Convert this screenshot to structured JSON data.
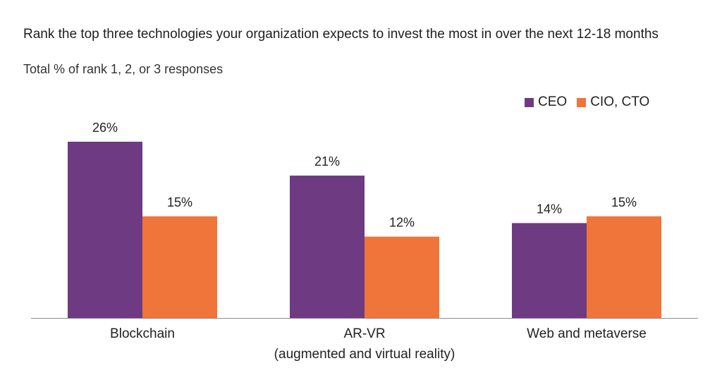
{
  "title": "Rank the top three technologies your organization expects to invest the most in over the next 12-18 months",
  "subtitle": "Total % of rank 1, 2, or 3 responses",
  "colors": {
    "ceo": "#6e3a82",
    "cio_cto": "#f0753a",
    "axis": "#8c8c8c"
  },
  "chart_data": {
    "type": "bar",
    "categories": [
      [
        "Blockchain"
      ],
      [
        "AR-VR",
        "(augmented and virtual reality)"
      ],
      [
        "Web and metaverse"
      ]
    ],
    "series": [
      {
        "name": "CEO",
        "values": [
          26,
          21,
          14
        ],
        "labels": [
          "26%",
          "21%",
          "14%"
        ]
      },
      {
        "name": "CIO, CTO",
        "values": [
          15,
          12,
          15
        ],
        "labels": [
          "15%",
          "12%",
          "15%"
        ]
      }
    ],
    "unit": "%",
    "ylim": [
      0,
      26
    ],
    "grid": false,
    "legend": "top-right"
  }
}
